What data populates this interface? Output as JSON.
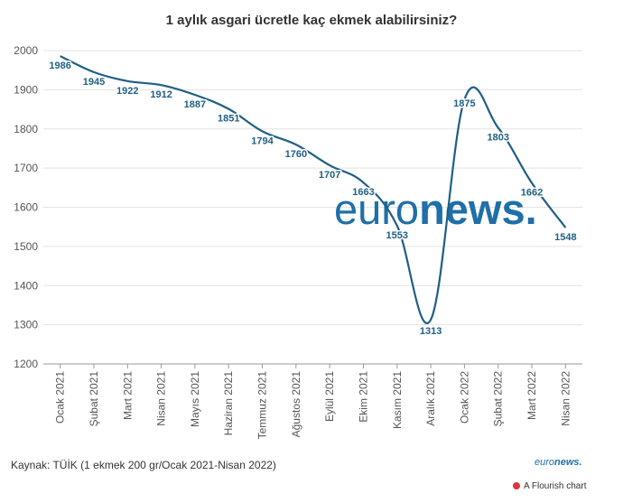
{
  "chart_data": {
    "type": "line",
    "title": "1 aylık asgari ücretle kaç ekmek alabilirsiniz?",
    "categories": [
      "Ocak 2021",
      "Şubat 2021",
      "Mart 2021",
      "Nisan 2021",
      "Mayıs 2021",
      "Haziran 2021",
      "Temmuz 2021",
      "Ağustos 2021",
      "Eylül 2021",
      "Ekim 2021",
      "Kasım 2021",
      "Aralık 2021",
      "Ocak 2022",
      "Şubat 2022",
      "Mart 2022",
      "Nisan 2022"
    ],
    "series": [
      {
        "values": [
          1986,
          1945,
          1922,
          1912,
          1887,
          1851,
          1794,
          1760,
          1707,
          1663,
          1553,
          1313,
          1875,
          1803,
          1662,
          1548
        ]
      }
    ],
    "ylim": [
      1200,
      2000
    ],
    "yticks": [
      1200,
      1300,
      1400,
      1500,
      1600,
      1700,
      1800,
      1900,
      2000
    ],
    "grid": true,
    "line_color": "#1f5f84"
  },
  "source": "Kaynak: TÜİK (1 ekmek 200 gr/Ocak 2021-Nisan 2022)",
  "watermark": {
    "euro": "euro",
    "news": "news."
  },
  "brand_small": {
    "euro": "euro",
    "news": "news."
  },
  "flourish_credit": "A Flourish chart"
}
